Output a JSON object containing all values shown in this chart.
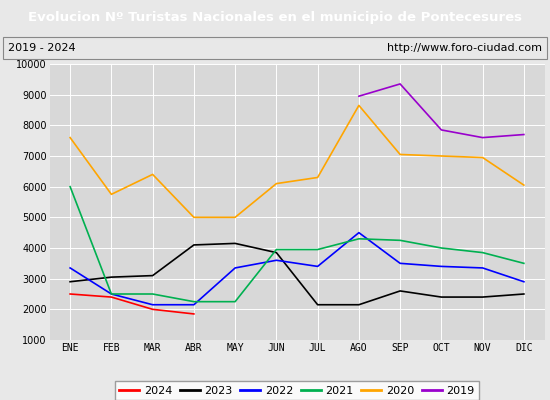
{
  "title": "Evolucion Nº Turistas Nacionales en el municipio de Pontecesures",
  "subtitle_left": "2019 - 2024",
  "subtitle_right": "http://www.foro-ciudad.com",
  "title_bg_color": "#4472c4",
  "title_text_color": "#ffffff",
  "subtitle_bg_color": "#e8e8e8",
  "plot_bg_color": "#d8d8d8",
  "months": [
    "ENE",
    "FEB",
    "MAR",
    "ABR",
    "MAY",
    "JUN",
    "JUL",
    "AGO",
    "SEP",
    "OCT",
    "NOV",
    "DIC"
  ],
  "ylim": [
    1000,
    10000
  ],
  "yticks": [
    1000,
    2000,
    3000,
    4000,
    5000,
    6000,
    7000,
    8000,
    9000,
    10000
  ],
  "series": {
    "2024": {
      "color": "#ff0000",
      "data": [
        2500,
        2400,
        2000,
        1850,
        null,
        null,
        null,
        null,
        null,
        null,
        null,
        null
      ]
    },
    "2023": {
      "color": "#000000",
      "data": [
        2900,
        3050,
        3100,
        4100,
        4150,
        3850,
        2150,
        2150,
        2600,
        2400,
        2400,
        2500
      ]
    },
    "2022": {
      "color": "#0000ff",
      "data": [
        3350,
        2500,
        2150,
        2150,
        3350,
        3600,
        3400,
        4500,
        3500,
        3400,
        3350,
        2900
      ]
    },
    "2021": {
      "color": "#00b050",
      "data": [
        6000,
        2500,
        2500,
        2250,
        2250,
        3950,
        3950,
        4300,
        4250,
        4000,
        3850,
        3500
      ]
    },
    "2020": {
      "color": "#ffa500",
      "data": [
        7600,
        5750,
        6400,
        5000,
        5000,
        6100,
        6300,
        8650,
        7050,
        7000,
        6950,
        6050
      ]
    },
    "2019": {
      "color": "#9900cc",
      "data": [
        null,
        null,
        null,
        null,
        null,
        null,
        null,
        8950,
        9350,
        7850,
        7600,
        7700
      ]
    }
  },
  "legend_order": [
    "2024",
    "2023",
    "2022",
    "2021",
    "2020",
    "2019"
  ]
}
